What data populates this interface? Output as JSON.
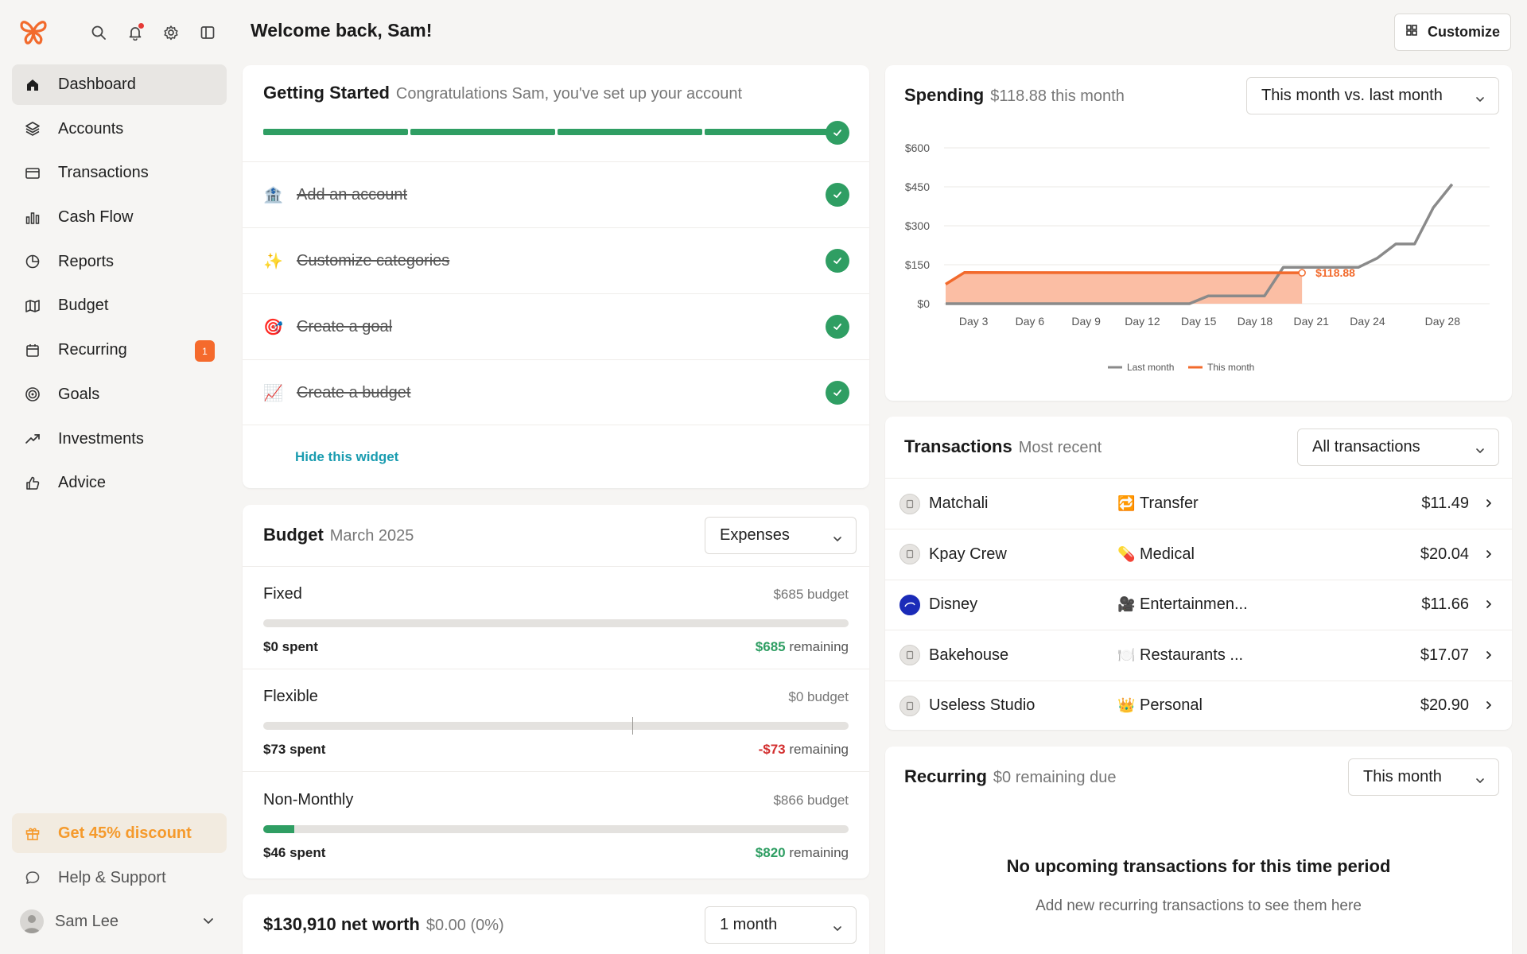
{
  "sidebar": {
    "logo": "butterfly-logo",
    "top_icons": [
      "search-icon",
      "bell-icon",
      "gear-icon",
      "sidebar-toggle-icon"
    ],
    "items": [
      {
        "label": "Dashboard",
        "icon": "home-icon",
        "active": true
      },
      {
        "label": "Accounts",
        "icon": "layers-icon"
      },
      {
        "label": "Transactions",
        "icon": "credit-card-icon"
      },
      {
        "label": "Cash Flow",
        "icon": "bar-chart-icon"
      },
      {
        "label": "Reports",
        "icon": "pie-chart-icon"
      },
      {
        "label": "Budget",
        "icon": "map-icon"
      },
      {
        "label": "Recurring",
        "icon": "calendar-icon",
        "badge": "1"
      },
      {
        "label": "Goals",
        "icon": "target-icon"
      },
      {
        "label": "Investments",
        "icon": "trend-up-icon"
      },
      {
        "label": "Advice",
        "icon": "thumbs-up-icon"
      }
    ],
    "discount_label": "Get 45% discount",
    "help_label": "Help & Support",
    "user_name": "Sam Lee"
  },
  "header": {
    "welcome": "Welcome back, Sam!",
    "customize_label": "Customize"
  },
  "getting_started": {
    "title": "Getting Started",
    "subtitle": "Congratulations Sam, you've set up your account",
    "progress_fraction": 1.0,
    "tasks": [
      {
        "icon": "🏦",
        "label": "Add an account",
        "done": true
      },
      {
        "icon": "✨",
        "label": "Customize categories",
        "done": true
      },
      {
        "icon": "🎯",
        "label": "Create a goal",
        "done": true
      },
      {
        "icon": "📈",
        "label": "Create a budget",
        "done": true
      }
    ],
    "hide_label": "Hide this widget"
  },
  "budget": {
    "title": "Budget",
    "subtitle": "March 2025",
    "select_value": "Expenses",
    "rows": [
      {
        "name": "Fixed",
        "budget": "$685 budget",
        "spent": "$0 spent",
        "remaining_amount": "$685",
        "remaining_label": "remaining",
        "fill_fraction": 0.0
      },
      {
        "name": "Flexible",
        "budget": "$0 budget",
        "spent": "$73 spent",
        "remaining_amount": "-$73",
        "remaining_label": "remaining",
        "fill_fraction": 0.0
      },
      {
        "name": "Non-Monthly",
        "budget": "$866 budget",
        "spent": "$46 spent",
        "remaining_amount": "$820",
        "remaining_label": "remaining",
        "fill_fraction": 0.053
      }
    ]
  },
  "net_worth": {
    "title": "$130,910 net worth",
    "subtitle": "$0.00 (0%)",
    "select_value": "1 month"
  },
  "spending": {
    "title": "Spending",
    "subtitle": "$118.88 this month",
    "select_value": "This month vs. last month",
    "current_label": "$118.88"
  },
  "chart_data": {
    "type": "line",
    "y_ticks": [
      "$600",
      "$450",
      "$300",
      "$150",
      "$0"
    ],
    "ylim": [
      0,
      600
    ],
    "xlim": [
      1,
      30
    ],
    "x_ticks": [
      {
        "day": 3,
        "label": "Day 3"
      },
      {
        "day": 6,
        "label": "Day 6"
      },
      {
        "day": 9,
        "label": "Day 9"
      },
      {
        "day": 12,
        "label": "Day 12"
      },
      {
        "day": 15,
        "label": "Day 15"
      },
      {
        "day": 18,
        "label": "Day 18"
      },
      {
        "day": 21,
        "label": "Day 21"
      },
      {
        "day": 24,
        "label": "Day 24"
      },
      {
        "day": 28,
        "label": "Day 28"
      }
    ],
    "series": [
      {
        "name": "Last month",
        "color": "#8a8a8a",
        "points": [
          [
            1,
            0
          ],
          [
            14,
            0
          ],
          [
            15,
            30
          ],
          [
            18,
            30
          ],
          [
            19,
            140
          ],
          [
            23,
            140
          ],
          [
            24,
            175
          ],
          [
            25,
            230
          ],
          [
            26,
            230
          ],
          [
            27,
            370
          ],
          [
            28,
            460
          ]
        ]
      },
      {
        "name": "This month",
        "color": "#f26a2c",
        "fill": "#fbb79a",
        "points": [
          [
            1,
            75
          ],
          [
            2,
            120
          ],
          [
            20,
            118.88
          ]
        ]
      }
    ],
    "legend_position": "bottom",
    "grid": true
  },
  "transactions": {
    "title": "Transactions",
    "subtitle": "Most recent",
    "select_value": "All transactions",
    "rows": [
      {
        "merchant": "Matchali",
        "merchant_icon": "generic-merchant-icon",
        "category_icon": "🔁",
        "category": "Transfer",
        "amount": "$11.49"
      },
      {
        "merchant": "Kpay Crew",
        "merchant_icon": "generic-merchant-icon",
        "category_icon": "💊",
        "category": "Medical",
        "amount": "$20.04"
      },
      {
        "merchant": "Disney",
        "merchant_icon": "disney-logo-icon",
        "category_icon": "🎥",
        "category": "Entertainmen...",
        "amount": "$11.66"
      },
      {
        "merchant": "Bakehouse",
        "merchant_icon": "generic-merchant-icon",
        "category_icon": "🍽️",
        "category": "Restaurants ...",
        "amount": "$17.07"
      },
      {
        "merchant": "Useless Studio",
        "merchant_icon": "generic-merchant-icon",
        "category_icon": "👑",
        "category": "Personal",
        "amount": "$20.90"
      }
    ]
  },
  "recurring": {
    "title": "Recurring",
    "subtitle": "$0 remaining due",
    "select_value": "This month",
    "empty_title": "No upcoming transactions for this time period",
    "empty_subtitle": "Add new recurring transactions to see them here"
  }
}
